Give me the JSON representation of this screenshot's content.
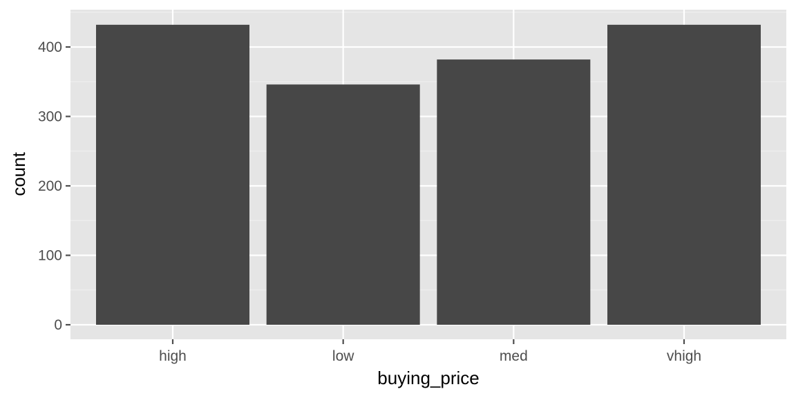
{
  "chart_data": {
    "type": "bar",
    "title": "",
    "xlabel": "buying_price",
    "ylabel": "count",
    "categories": [
      "high",
      "low",
      "med",
      "vhigh"
    ],
    "values": [
      432,
      346,
      382,
      432
    ],
    "ylim": [
      0,
      432
    ],
    "yticks": [
      0,
      100,
      200,
      300,
      400
    ],
    "grid": true,
    "legend": "none",
    "colors": {
      "bar": "#474747",
      "panel": "#e5e5e5",
      "grid_major": "#ffffff",
      "grid_minor": "#f2f2f2",
      "tick": "#4d4d4d"
    }
  }
}
